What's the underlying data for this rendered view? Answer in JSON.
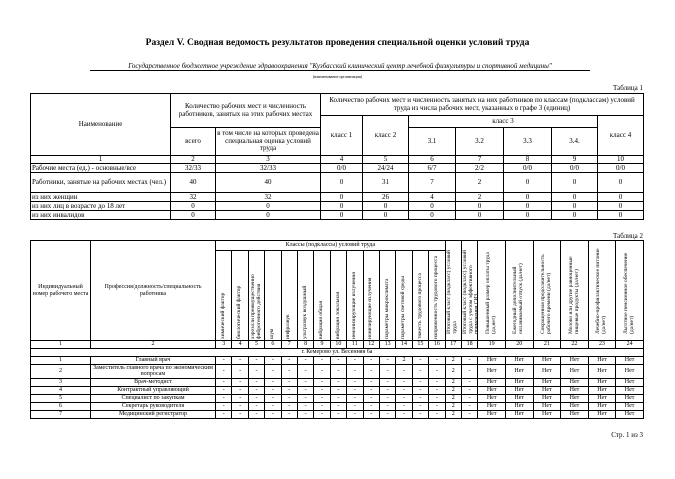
{
  "header": {
    "title": "Раздел V. Сводная ведомость результатов проведения специальной оценки условий труда",
    "organization": "Государственное бюджетное учреждение здравоохранения \"Кузбасский клинический центр лечебной физкультуры и спортивной медицины\"",
    "organization_caption": "(наименование организации)"
  },
  "table1": {
    "label": "Таблица 1",
    "headers": {
      "name": "Наименование",
      "workplaces": "Количество рабочих мест и численность работников, занятых на этих рабочих местах",
      "total": "всего",
      "assessed": "в том числе на которых проведена специальная оценка условий труда",
      "classes": "Количество рабочих мест и численность занятых на них работников по классам (подклассам) условий труда из числа рабочих мест, указанных в графе 3 (единиц)",
      "class1": "класс 1",
      "class2": "класс 2",
      "class3": "класс 3",
      "class4": "класс 4",
      "subclasses": [
        "3.1",
        "3.2",
        "3.3",
        "3.4."
      ]
    },
    "column_numbers": [
      1,
      2,
      3,
      4,
      5,
      6,
      7,
      8,
      9,
      10
    ],
    "rows": [
      [
        "Рабочие места (ед.) - основные/все",
        "32/33",
        "32/33",
        "0/0",
        "24/24",
        "6/7",
        "2/2",
        "0/0",
        "0/0",
        "0/0"
      ],
      [
        "Работники, занятые на рабочих местах (чел.)",
        40,
        40,
        0,
        31,
        7,
        2,
        0,
        0,
        0
      ],
      [
        "из них женщин",
        32,
        32,
        0,
        26,
        4,
        2,
        0,
        0,
        0
      ],
      [
        "из них лиц в возрасте до 18 лет",
        0,
        0,
        0,
        0,
        0,
        0,
        0,
        0,
        0
      ],
      [
        "из них инвалидов",
        0,
        0,
        0,
        0,
        0,
        0,
        0,
        0,
        0
      ]
    ]
  },
  "table2": {
    "label": "Таблица 2",
    "headers": {
      "number": "Индивидуальный номер рабочего места",
      "position": "Профессия/должность/специальность работника",
      "classes": "Классы (подклассы) условий труда",
      "factors": [
        "химический фактор",
        "биологический фактор",
        "аэрозоли преимущественно фиброгенного действия",
        "шум",
        "инфразвук",
        "ультразвук воздушный",
        "вибрация общая",
        "вибрация локальная",
        "неионизирующие излучения",
        "ионизирующие излучения",
        "параметры микроклимата",
        "параметры световой среды",
        "тяжесть трудового процесса",
        "напряженность трудового процесса"
      ],
      "other": [
        "Итоговый класс (подкласс) условий труда",
        "Итоговый класс (подкласс) условий труда с учетом эффективного применения СИЗ",
        "Повышенный размер оплаты труда (да,нет)",
        "Ежегодный дополнительный оплачиваемый отпуск (да/нет)",
        "Сокращенная продолжительность рабочего времени (да/нет)",
        "Молоко или другие равноценные пищевые продукты (да/нет)",
        "Лечебно-профилактическое питание (да/нет)",
        "Льготное пенсионное обеспечение (да/нет)"
      ]
    },
    "column_numbers": [
      1,
      2,
      3,
      4,
      5,
      6,
      7,
      8,
      9,
      10,
      11,
      12,
      13,
      14,
      15,
      16,
      17,
      18,
      19,
      20,
      21,
      22,
      23,
      24
    ],
    "section": "г. Кемерово ул. Весенняя 6а",
    "rows": [
      [
        "1",
        "Главный врач",
        "-",
        "-",
        "-",
        "-",
        "-",
        "-",
        "-",
        "-",
        "-",
        "-",
        "-",
        "2",
        "-",
        "-",
        "2",
        "-",
        "Нет",
        "Нет",
        "Нет",
        "Нет",
        "Нет",
        "Нет"
      ],
      [
        "2",
        "Заместитель главного врача по экономическим вопросам",
        "-",
        "-",
        "-",
        "-",
        "-",
        "-",
        "-",
        "-",
        "-",
        "-",
        "-",
        "-",
        "-",
        "-",
        "2",
        "-",
        "Нет",
        "Нет",
        "Нет",
        "Нет",
        "Нет",
        "Нет"
      ],
      [
        "3",
        "Врач-методист",
        "-",
        "-",
        "-",
        "-",
        "-",
        "-",
        "-",
        "-",
        "-",
        "-",
        "-",
        "-",
        "-",
        "-",
        "2",
        "-",
        "Нет",
        "Нет",
        "Нет",
        "Нет",
        "Нет",
        "Нет"
      ],
      [
        "4",
        "Контрактный управляющий",
        "-",
        "-",
        "-",
        "-",
        "-",
        "-",
        "-",
        "-",
        "-",
        "-",
        "-",
        "-",
        "-",
        "-",
        "2",
        "-",
        "Нет",
        "Нет",
        "Нет",
        "Нет",
        "Нет",
        "Нет"
      ],
      [
        "5",
        "Специалист по закупкам",
        "-",
        "-",
        "-",
        "-",
        "-",
        "-",
        "-",
        "-",
        "-",
        "-",
        "-",
        "-",
        "-",
        "-",
        "2",
        "-",
        "Нет",
        "Нет",
        "Нет",
        "Нет",
        "Нет",
        "Нет"
      ],
      [
        "6",
        "Секретарь руководителя",
        "-",
        "-",
        "-",
        "-",
        "-",
        "-",
        "-",
        "-",
        "-",
        "-",
        "-",
        "-",
        "-",
        "-",
        "2",
        "-",
        "Нет",
        "Нет",
        "Нет",
        "Нет",
        "Нет",
        "Нет"
      ],
      [
        "7",
        "Медицинский регистратор",
        "-",
        "-",
        "-",
        "-",
        "-",
        "-",
        "-",
        "-",
        "-",
        "-",
        "-",
        "-",
        "-",
        "-",
        "2",
        "-",
        "Нет",
        "Нет",
        "Нет",
        "Нет",
        "Нет",
        "Нет"
      ]
    ]
  },
  "footer": "Стр. 1 из 3"
}
